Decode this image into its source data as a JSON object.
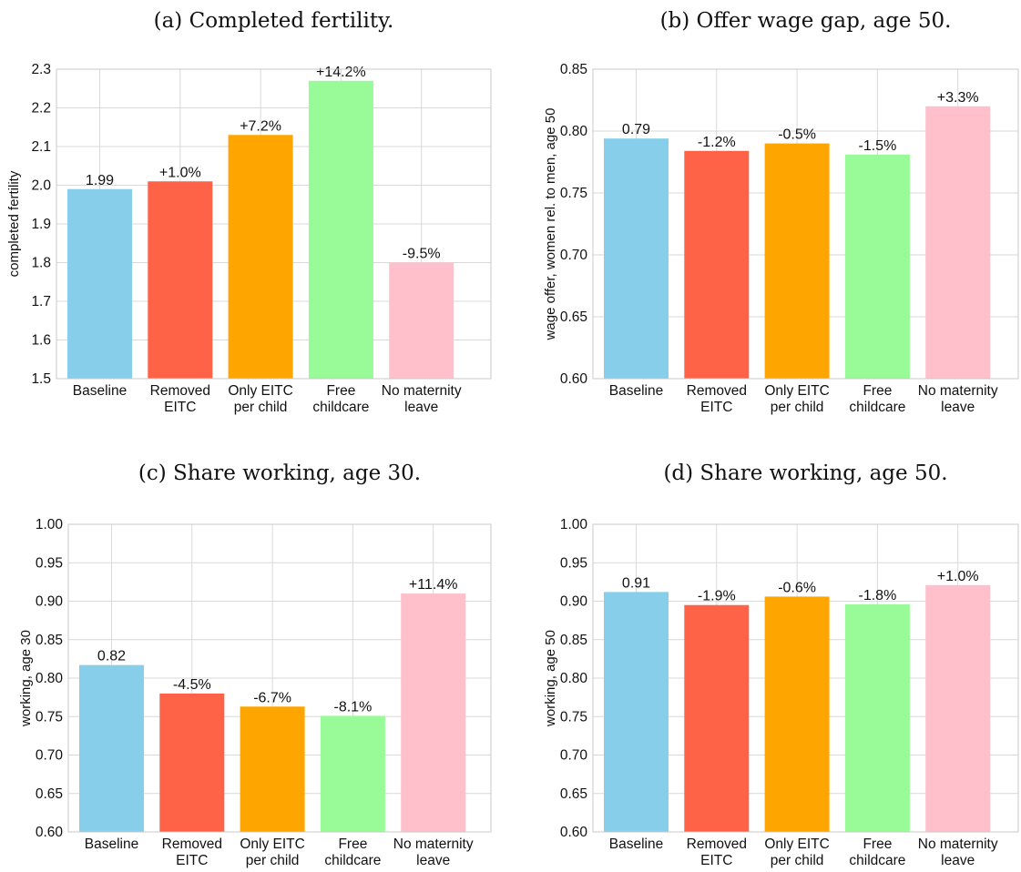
{
  "chart_data": [
    {
      "type": "bar",
      "title": "(a) Completed fertility.",
      "ylabel": "completed fertility",
      "categories": [
        [
          "Baseline"
        ],
        [
          "Removed",
          "EITC"
        ],
        [
          "Only EITC",
          "per child"
        ],
        [
          "Free",
          "childcare"
        ],
        [
          "No maternity",
          "leave"
        ]
      ],
      "values": [
        1.99,
        2.01,
        2.13,
        2.27,
        1.8
      ],
      "bar_labels": [
        "1.99",
        "+1.0%",
        "+7.2%",
        "+14.2%",
        "-9.5%"
      ],
      "ylim": [
        1.5,
        2.3
      ],
      "yticks": [
        "1.5",
        "1.6",
        "1.7",
        "1.8",
        "1.9",
        "2.0",
        "2.1",
        "2.2",
        "2.3"
      ],
      "grid": true
    },
    {
      "type": "bar",
      "title": "(b) Offer wage gap, age 50.",
      "ylabel": "wage offer, women rel. to men, age 50",
      "categories": [
        [
          "Baseline"
        ],
        [
          "Removed",
          "EITC"
        ],
        [
          "Only EITC",
          "per child"
        ],
        [
          "Free",
          "childcare"
        ],
        [
          "No maternity",
          "leave"
        ]
      ],
      "values": [
        0.794,
        0.784,
        0.79,
        0.781,
        0.82
      ],
      "bar_labels": [
        "0.79",
        "-1.2%",
        "-0.5%",
        "-1.5%",
        "+3.3%"
      ],
      "ylim": [
        0.6,
        0.85
      ],
      "yticks": [
        "0.60",
        "0.65",
        "0.70",
        "0.75",
        "0.80",
        "0.85"
      ],
      "grid": true
    },
    {
      "type": "bar",
      "title": "(c) Share working, age 30.",
      "ylabel": "working, age 30",
      "categories": [
        [
          "Baseline"
        ],
        [
          "Removed",
          "EITC"
        ],
        [
          "Only EITC",
          "per child"
        ],
        [
          "Free",
          "childcare"
        ],
        [
          "No maternity",
          "leave"
        ]
      ],
      "values": [
        0.817,
        0.78,
        0.763,
        0.751,
        0.91
      ],
      "bar_labels": [
        "0.82",
        "-4.5%",
        "-6.7%",
        "-8.1%",
        "+11.4%"
      ],
      "ylim": [
        0.6,
        1.0
      ],
      "yticks": [
        "0.60",
        "0.65",
        "0.70",
        "0.75",
        "0.80",
        "0.85",
        "0.90",
        "0.95",
        "1.00"
      ],
      "grid": true
    },
    {
      "type": "bar",
      "title": "(d) Share working, age 50.",
      "ylabel": "working, age 50",
      "categories": [
        [
          "Baseline"
        ],
        [
          "Removed",
          "EITC"
        ],
        [
          "Only EITC",
          "per child"
        ],
        [
          "Free",
          "childcare"
        ],
        [
          "No maternity",
          "leave"
        ]
      ],
      "values": [
        0.912,
        0.895,
        0.906,
        0.896,
        0.921
      ],
      "bar_labels": [
        "0.91",
        "-1.9%",
        "-0.6%",
        "-1.8%",
        "+1.0%"
      ],
      "ylim": [
        0.6,
        1.0
      ],
      "yticks": [
        "0.60",
        "0.65",
        "0.70",
        "0.75",
        "0.80",
        "0.85",
        "0.90",
        "0.95",
        "1.00"
      ],
      "grid": true
    }
  ],
  "colors": {
    "bars": [
      "#87ceeb",
      "#ff6347",
      "#ffa500",
      "#98fb98",
      "#ffc0cb"
    ],
    "grid": "#d9d9d9",
    "frame": "#c8c8c8"
  }
}
